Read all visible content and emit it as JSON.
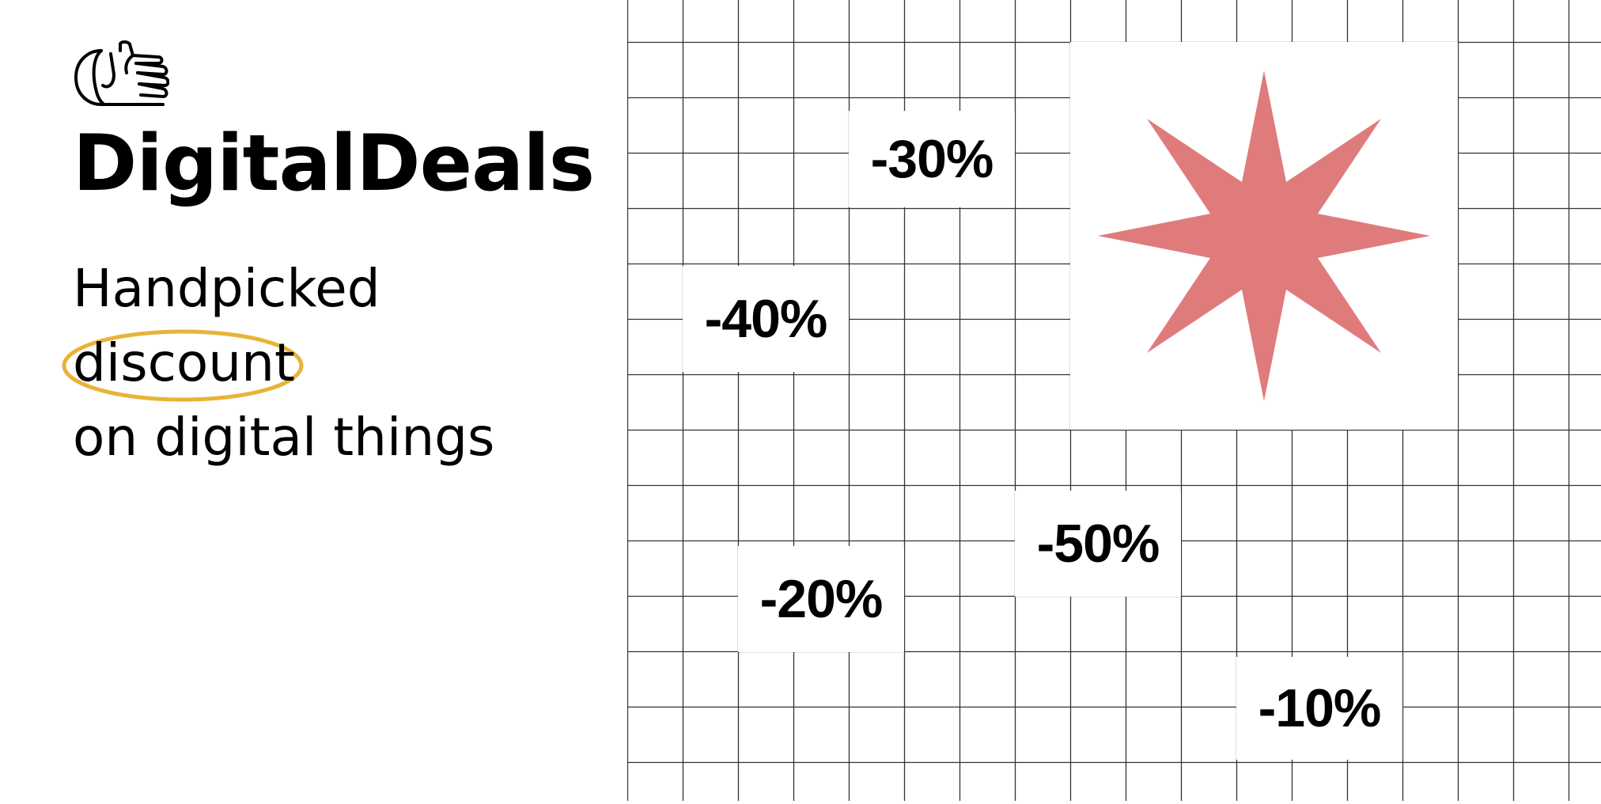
{
  "brand": {
    "name": "DigitalDeals",
    "logo_icon": "thumbs-up-hand-icon"
  },
  "tagline": {
    "line1": "Handpicked",
    "line2": "discount",
    "line3": "on digital things",
    "highlight_color": "#E8B339"
  },
  "discounts": [
    {
      "label": "-30%"
    },
    {
      "label": "-40%"
    },
    {
      "label": "-50%"
    },
    {
      "label": "-20%"
    },
    {
      "label": "-10%"
    }
  ],
  "decoration": {
    "star_icon": "eight-point-star-icon",
    "star_color": "#E07B7C",
    "grid_line_color": "#333333"
  }
}
